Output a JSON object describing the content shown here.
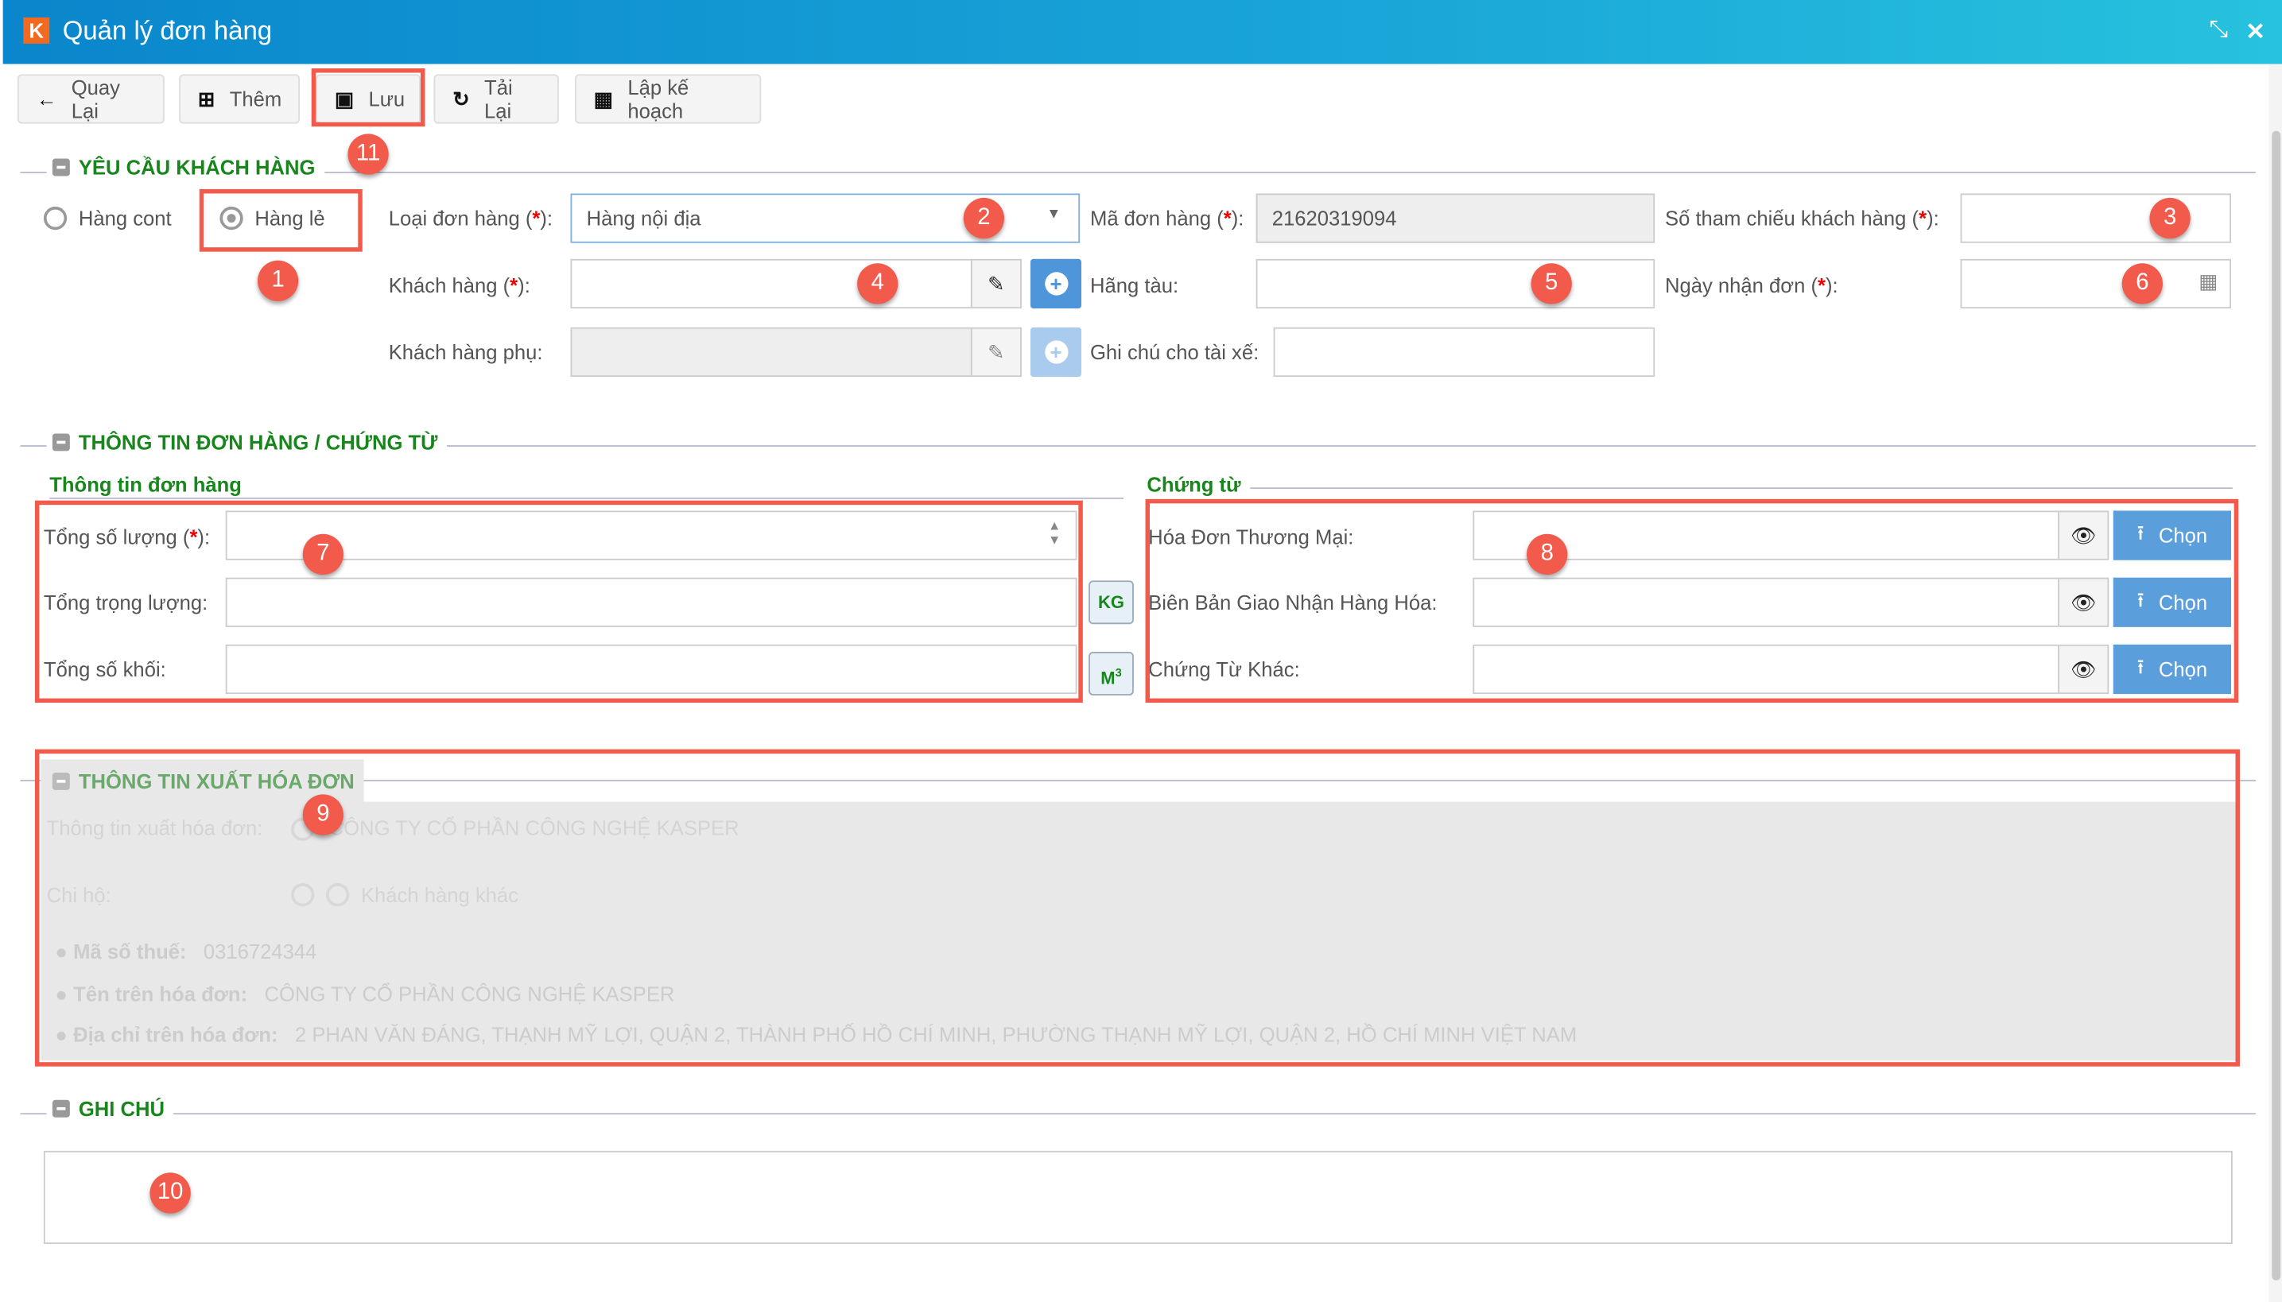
{
  "window": {
    "title": "Quản lý đơn hàng",
    "logo_letter": "K",
    "minimize_icon": "compress-icon",
    "close_icon": "close-icon"
  },
  "toolbar": {
    "back": "Quay Lại",
    "add": "Thêm",
    "save": "Lưu",
    "reload": "Tải Lại",
    "plan": "Lập kế hoạch"
  },
  "customer_request": {
    "title": "YÊU CẦU KHÁCH HÀNG",
    "radio_cont": "Hàng cont",
    "radio_le": "Hàng lẻ",
    "selected": "Hàng lẻ",
    "order_type_label": "Loại đơn hàng (",
    "order_type_value": "Hàng nội địa",
    "order_code_label": "Mã đơn hàng (",
    "order_code_value": "21620319094",
    "ref_label": "Số tham chiếu khách hàng (",
    "ref_value": "",
    "customer_label": "Khách hàng (",
    "customer_value": "",
    "shipline_label": "Hãng tàu:",
    "shipline_value": "",
    "receive_date_label": "Ngày nhận đơn (",
    "receive_date_value": "",
    "sub_customer_label": "Khách hàng phụ:",
    "sub_customer_value": "",
    "driver_note_label": "Ghi chú cho tài xế:",
    "driver_note_value": "",
    "req_mark": "*",
    "req_suffix": "):"
  },
  "order_docs": {
    "title": "THÔNG TIN ĐƠN HÀNG / CHỨNG TỪ",
    "order_info": {
      "title": "Thông tin đơn hàng",
      "total_qty_label": "Tổng số lượng (",
      "total_weight_label": "Tổng trọng lượng:",
      "weight_unit": "KG",
      "total_volume_label": "Tổng số khối:",
      "volume_unit": "M",
      "volume_sup": "3"
    },
    "docs": {
      "title": "Chứng từ",
      "choose": "Chọn",
      "items": [
        {
          "label": "Hóa Đơn Thương Mại:"
        },
        {
          "label": "Biên Bản Giao Nhận Hàng Hóa:"
        },
        {
          "label": "Chứng Từ Khác:"
        }
      ]
    }
  },
  "invoice": {
    "title": "THÔNG TIN XUẤT HÓA ĐƠN",
    "info_label": "Thông tin xuất hóa đơn:",
    "info_value": "CÔNG TY CỔ PHẦN CÔNG NGHỆ KASPER",
    "chi_ho_label": "Chi hộ:",
    "other_customer": "Khách hàng khác",
    "tax_label": "Mã số thuế:",
    "tax_value": "0316724344",
    "name_label": "Tên trên hóa đơn:",
    "name_value": "CÔNG TY CỔ PHẦN CÔNG NGHỆ KASPER",
    "address_label": "Địa chỉ trên hóa đơn:",
    "address_value": "2 PHAN VĂN ĐÁNG, THẠNH MỸ LỢI, QUẬN 2, THÀNH PHỐ HỒ CHÍ MINH, PHƯỜNG THẠNH MỸ LỢI, QUẬN 2, HỒ CHÍ MINH VIỆT NAM"
  },
  "notes": {
    "title": "GHI CHÚ",
    "value": ""
  },
  "annotations": [
    "1",
    "2",
    "3",
    "4",
    "5",
    "6",
    "7",
    "8",
    "9",
    "10",
    "11"
  ],
  "colors": {
    "accent": "#18861c",
    "title_bar": "#0a86cc",
    "primary_button": "#5a9fdc",
    "annotation": "#f25a4c"
  }
}
